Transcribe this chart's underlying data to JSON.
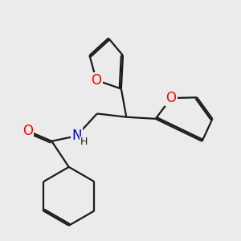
{
  "background_color": "#ebebeb",
  "bond_color": "#1a1a1a",
  "bond_width": 1.6,
  "atom_colors": {
    "O": "#ff0000",
    "N": "#0000cc",
    "H": "#1a1a1a"
  }
}
